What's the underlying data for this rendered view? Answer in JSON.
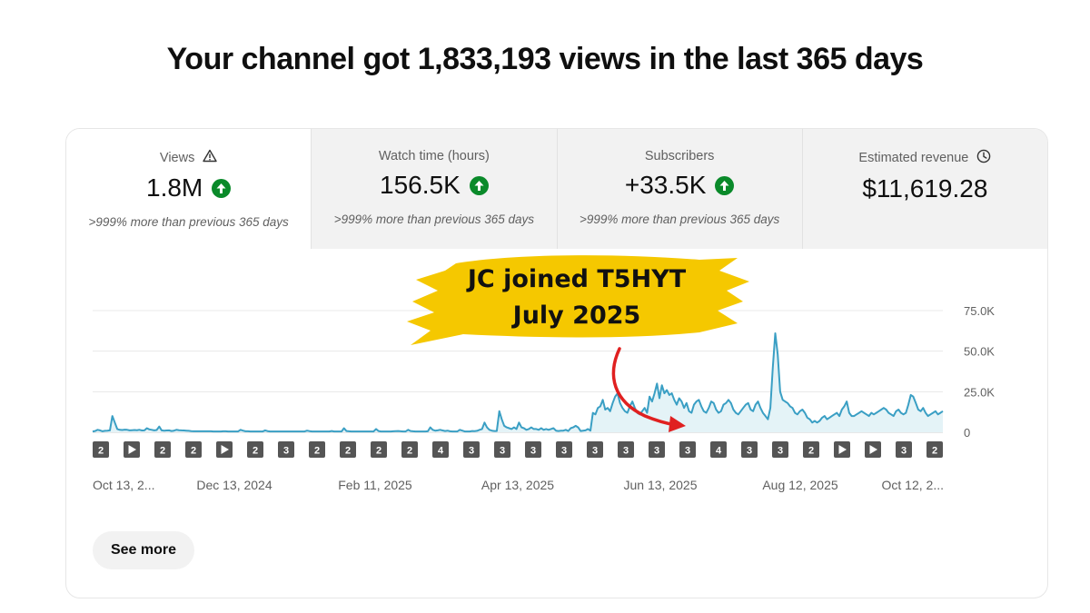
{
  "headline": "Your channel got 1,833,193 views in the last 365 days",
  "tabs": [
    {
      "label": "Views",
      "icon": "warning-icon",
      "value": "1.8M",
      "trend": "up",
      "sub": ">999% more than previous 365 days"
    },
    {
      "label": "Watch time (hours)",
      "value": "156.5K",
      "trend": "up",
      "sub": ">999% more than previous 365 days"
    },
    {
      "label": "Subscribers",
      "value": "+33.5K",
      "trend": "up",
      "sub": ">999% more than previous 365 days"
    },
    {
      "label": "Estimated revenue",
      "icon": "clock-icon",
      "value": "$11,619.28",
      "sub": ""
    }
  ],
  "callout": {
    "line1": "JC joined T5HYT",
    "line2": "July 2025",
    "color": "#f5c800",
    "arrow_color": "#e02020"
  },
  "see_more": "See more",
  "colors": {
    "line": "#3a9fc4",
    "fill": "#e4f3f7",
    "trend_up": "#0a8a2a",
    "marker": "#555555"
  },
  "chart_data": {
    "type": "area",
    "ylim": [
      0,
      75000
    ],
    "yticks": [
      "75.0K",
      "50.0K",
      "25.0K",
      "0"
    ],
    "xticks": [
      "Oct 13, 2...",
      "Dec 13, 2024",
      "Feb 11, 2025",
      "Apr 13, 2025",
      "Jun 13, 2025",
      "Aug 12, 2025",
      "Oct 12, 2..."
    ],
    "markers": [
      "2",
      "play",
      "2",
      "2",
      "play",
      "2",
      "3",
      "2",
      "2",
      "2",
      "2",
      "4",
      "3",
      "3",
      "3",
      "3",
      "3",
      "3",
      "3",
      "3",
      "4",
      "3",
      "3",
      "2",
      "play",
      "play",
      "3",
      "2"
    ],
    "series": [
      {
        "values": [
          500,
          800,
          1500,
          1200,
          600,
          900,
          1000,
          1200,
          10000,
          6000,
          2000,
          1500,
          1400,
          1600,
          1500,
          1200,
          1300,
          1400,
          1300,
          1500,
          1100,
          1200,
          2500,
          1800,
          1500,
          1200,
          1400,
          3500,
          1200,
          1000,
          1100,
          1200,
          800,
          1000,
          1500,
          1300,
          1200,
          1100,
          1000,
          900,
          700,
          600,
          600,
          600,
          600,
          600,
          600,
          600,
          600,
          500,
          500,
          500,
          500,
          600,
          600,
          500,
          500,
          500,
          500,
          500,
          1500,
          1000,
          600,
          600,
          500,
          500,
          500,
          500,
          500,
          500,
          1200,
          700,
          500,
          500,
          500,
          500,
          500,
          500,
          500,
          500,
          500,
          500,
          500,
          500,
          500,
          500,
          500,
          1000,
          700,
          500,
          500,
          500,
          500,
          500,
          500,
          500,
          500,
          800,
          500,
          500,
          500,
          500,
          2500,
          800,
          600,
          500,
          500,
          500,
          500,
          500,
          500,
          500,
          500,
          500,
          500,
          2000,
          800,
          500,
          500,
          500,
          500,
          500,
          600,
          700,
          800,
          600,
          500,
          500,
          1500,
          800,
          600,
          500,
          500,
          500,
          500,
          500,
          600,
          3000,
          1500,
          1000,
          1200,
          1500,
          1100,
          800,
          1000,
          600,
          500,
          500,
          500,
          1500,
          1000,
          500,
          500,
          500,
          800,
          700,
          900,
          1500,
          2000,
          6000,
          3000,
          1500,
          1000,
          800,
          800,
          13000,
          8000,
          4000,
          3000,
          2500,
          2000,
          3000,
          2000,
          6000,
          3000,
          2500,
          1500,
          2000,
          3000,
          2000,
          2000,
          1500,
          2500,
          1500,
          2000,
          1500,
          2000,
          2500,
          1000,
          800,
          1000,
          1000,
          1500,
          800,
          2500,
          3000,
          4000,
          3000,
          800,
          1000,
          1200,
          2000,
          1000,
          12000,
          11000,
          15000,
          16000,
          20000,
          14000,
          15000,
          13000,
          18000,
          22000,
          24000,
          18000,
          15000,
          13000,
          12000,
          16000,
          19000,
          15000,
          12000,
          11000,
          13000,
          15000,
          12000,
          22000,
          19000,
          24000,
          30000,
          21000,
          29000,
          24000,
          26000,
          23000,
          24000,
          20000,
          17000,
          21000,
          19000,
          15000,
          18000,
          13000,
          12000,
          17000,
          19000,
          20000,
          16000,
          13000,
          12000,
          15000,
          19000,
          18000,
          14000,
          12000,
          13000,
          17000,
          18000,
          20000,
          18000,
          14000,
          12000,
          11000,
          13000,
          15000,
          17000,
          18000,
          14000,
          13000,
          17000,
          19000,
          15000,
          12000,
          10000,
          8000,
          15000,
          40000,
          61000,
          48000,
          25000,
          20000,
          19000,
          18000,
          16000,
          15000,
          12000,
          11000,
          13000,
          14000,
          12000,
          9000,
          8000,
          6000,
          7000,
          6000,
          7000,
          9000,
          10000,
          8000,
          9000,
          10000,
          11000,
          12000,
          10000,
          14000,
          16000,
          19000,
          12000,
          10000,
          10000,
          11000,
          12000,
          13000,
          12000,
          11000,
          10000,
          12000,
          11000,
          12000,
          13000,
          14000,
          15000,
          14000,
          12000,
          11000,
          10000,
          13000,
          14000,
          12000,
          11000,
          12000,
          17000,
          23000,
          22000,
          18000,
          14000,
          13000,
          15000,
          12000,
          10000,
          11000,
          12000,
          13000,
          11000,
          12000,
          13000
        ]
      }
    ]
  }
}
